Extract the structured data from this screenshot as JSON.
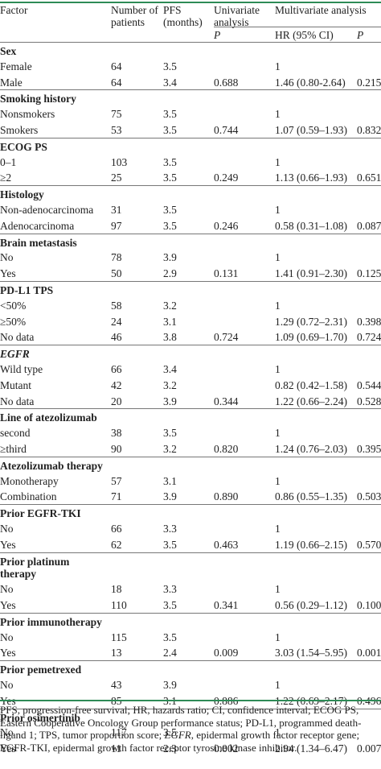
{
  "header": {
    "factor": "Factor",
    "patients": "Number of patients",
    "pfs": "PFS (months)",
    "univariate": "Univariate analysis",
    "multivariate": "Multivariate analysis",
    "p1": "P",
    "hr": "HR (95% CI)",
    "p2": "P"
  },
  "sections": [
    {
      "title": "Sex",
      "rows": [
        [
          "Female",
          "64",
          "3.5",
          "",
          "1",
          ""
        ],
        [
          "Male",
          "64",
          "3.4",
          "0.688",
          "1.46 (0.80-2.64)",
          "0.215"
        ]
      ]
    },
    {
      "title": "Smoking history",
      "rows": [
        [
          "Nonsmokers",
          "75",
          "3.5",
          "",
          "1",
          ""
        ],
        [
          "Smokers",
          "53",
          "3.5",
          "0.744",
          "1.07 (0.59–1.93)",
          "0.832"
        ]
      ]
    },
    {
      "title": "ECOG PS",
      "rows": [
        [
          "0–1",
          "103",
          "3.5",
          "",
          "1",
          ""
        ],
        [
          "≥2",
          "25",
          "3.5",
          "0.249",
          "1.13 (0.66–1.93)",
          "0.651"
        ]
      ]
    },
    {
      "title": "Histology",
      "rows": [
        [
          "Non-adenocarcinoma",
          "31",
          "3.5",
          "",
          "1",
          ""
        ],
        [
          "Adenocarcinoma",
          "97",
          "3.5",
          "0.246",
          "0.58 (0.31–1.08)",
          "0.087"
        ]
      ]
    },
    {
      "title": "Brain metastasis",
      "rows": [
        [
          "No",
          "78",
          "3.9",
          "",
          "1",
          ""
        ],
        [
          "Yes",
          "50",
          "2.9",
          "0.131",
          "1.41 (0.91–2.30)",
          "0.125"
        ]
      ]
    },
    {
      "title": "PD-L1 TPS",
      "rows": [
        [
          "<50%",
          "58",
          "3.2",
          "",
          "1",
          ""
        ],
        [
          "≥50%",
          "24",
          "3.1",
          "",
          "1.29 (0.72–2.31)",
          "0.398"
        ],
        [
          "No data",
          "46",
          "3.8",
          "0.724",
          "1.09 (0.69–1.70)",
          "0.724"
        ]
      ]
    },
    {
      "title": "EGFR",
      "italic": true,
      "rows": [
        [
          "Wild type",
          "66",
          "3.4",
          "",
          "1",
          ""
        ],
        [
          "Mutant",
          "42",
          "3.2",
          "",
          "0.82 (0.42–1.58)",
          "0.544"
        ],
        [
          "No data",
          "20",
          "3.9",
          "0.344",
          "1.22 (0.66–2.24)",
          "0.528"
        ]
      ]
    },
    {
      "title": "Line of atezolizumab",
      "rows": [
        [
          "second",
          "38",
          "3.5",
          "",
          "1",
          ""
        ],
        [
          "≥third",
          "90",
          "3.2",
          "0.820",
          "1.24 (0.76–2.03)",
          "0.395"
        ]
      ]
    },
    {
      "title": "Atezolizumab therapy",
      "rows": [
        [
          "Monotherapy",
          "57",
          "3.1",
          "",
          "1",
          ""
        ],
        [
          "Combination",
          "71",
          "3.9",
          "0.890",
          "0.86 (0.55–1.35)",
          "0.503"
        ]
      ]
    },
    {
      "title": "Prior EGFR-TKI",
      "rows": [
        [
          "No",
          "66",
          "3.3",
          "",
          "1",
          ""
        ],
        [
          "Yes",
          "62",
          "3.5",
          "0.463",
          "1.19 (0.66–2.15)",
          "0.570"
        ]
      ]
    },
    {
      "title": "Prior platinum therapy",
      "twoLine": true,
      "rows": [
        [
          "No",
          "18",
          "3.3",
          "",
          "1",
          ""
        ],
        [
          "Yes",
          "110",
          "3.5",
          "0.341",
          "0.56 (0.29–1.12)",
          "0.100"
        ]
      ]
    },
    {
      "title": "Prior immunotherapy",
      "rows": [
        [
          "No",
          "115",
          "3.5",
          "",
          "1",
          ""
        ],
        [
          "Yes",
          "13",
          "2.4",
          "0.009",
          "3.03 (1.54–5.95)",
          "0.001"
        ]
      ]
    },
    {
      "title": "Prior pemetrexed",
      "rows": [
        [
          "No",
          "43",
          "3.9",
          "",
          "1",
          ""
        ],
        [
          "Yes",
          "85",
          "3.1",
          "0.886",
          "1.22 (0.69–2.17)",
          "0.496"
        ]
      ]
    },
    {
      "title": "Prior osimertinib",
      "rows": [
        [
          "No",
          "117",
          "3.5",
          "",
          "1",
          ""
        ],
        [
          "Yes",
          "11",
          "2.3",
          "0.002",
          "2.94 (1.34–6.47)",
          "0.007"
        ]
      ]
    }
  ],
  "footnote": {
    "part1": "PFS, progression-free survival; HR, hazards ratio; CI, confidence interval; ECOG PS, Eastern Cooperative Oncology Group performance status; PD-L1, programmed death-ligand 1; TPS, tumor proportion score; ",
    "egfr": "EGFR",
    "part2": ", epidermal growth factor receptor gene; EGFR-TKI, epidermal growth factor receptor tyrosine kinase inhibitor."
  }
}
